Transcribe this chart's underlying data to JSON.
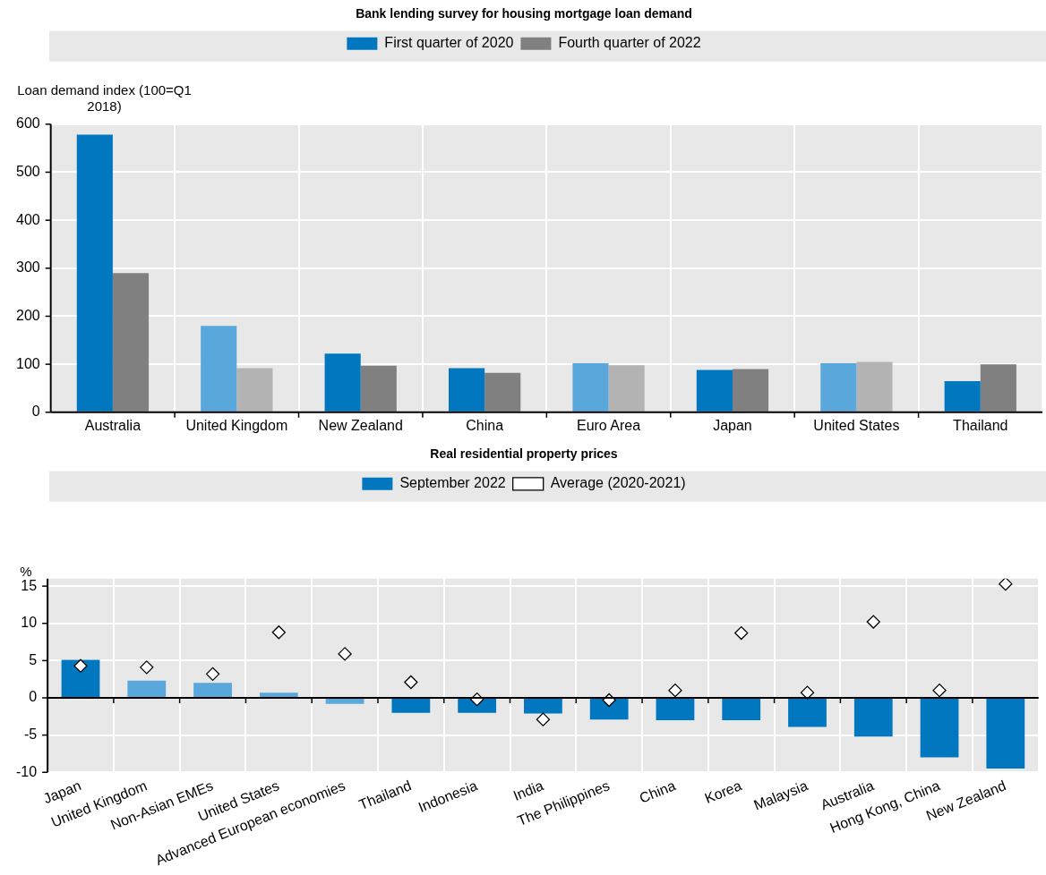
{
  "chart_data": [
    {
      "type": "bar",
      "title": "Bank lending survey for housing mortgage loan demand",
      "ylabel": "Loan demand index (100=Q1 2018)",
      "categories": [
        "Australia",
        "United Kingdom",
        "New Zealand",
        "China",
        "Euro Area",
        "Japan",
        "United States",
        "Thailand"
      ],
      "series": [
        {
          "name": "First quarter of 2020",
          "color": "#0077bf",
          "colors": [
            "#0077bf",
            "#59a7db",
            "#0077bf",
            "#0077bf",
            "#59a7db",
            "#0077bf",
            "#59a7db",
            "#0077bf"
          ],
          "values": [
            578,
            180,
            122,
            92,
            102,
            88,
            102,
            65
          ]
        },
        {
          "name": "Fourth quarter of 2022",
          "color": "#808080",
          "colors": [
            "#808080",
            "#b3b3b3",
            "#808080",
            "#808080",
            "#b3b3b3",
            "#808080",
            "#b3b3b3",
            "#808080"
          ],
          "values": [
            290,
            92,
            97,
            82,
            98,
            90,
            105,
            100
          ]
        }
      ],
      "ylim": [
        0,
        600
      ],
      "yticks": [
        0,
        100,
        200,
        300,
        400,
        500,
        600
      ],
      "grid": true,
      "legend": "top"
    },
    {
      "type": "bar",
      "title": "Real residential property prices",
      "ylabel": "%",
      "categories": [
        "Japan",
        "United Kingdom",
        "Non-Asian EMEs",
        "United States",
        "Advanced European economies",
        "Thailand",
        "Indonesia",
        "India",
        "The Philippines",
        "China",
        "Korea",
        "Malaysia",
        "Australia",
        "Hong Kong, China",
        "New Zealand"
      ],
      "series": [
        {
          "name": "September 2022",
          "type": "bar",
          "color": "#0077bf",
          "colors": [
            "#0077bf",
            "#59a7db",
            "#59a7db",
            "#59a7db",
            "#59a7db",
            "#0077bf",
            "#0077bf",
            "#0077bf",
            "#0077bf",
            "#0077bf",
            "#0077bf",
            "#0077bf",
            "#0077bf",
            "#0077bf",
            "#0077bf"
          ],
          "values": [
            5.1,
            2.3,
            2.0,
            0.7,
            -0.8,
            -2.0,
            -2.0,
            -2.1,
            -2.9,
            -3.0,
            -3.0,
            -3.9,
            -5.2,
            -8.0,
            -9.5
          ]
        },
        {
          "name": "Average (2020-2021)",
          "type": "scatter",
          "color": "#ffffff",
          "values": [
            4.3,
            4.1,
            3.2,
            8.8,
            5.9,
            2.1,
            -0.2,
            -2.9,
            -0.3,
            1.0,
            8.7,
            0.7,
            10.2,
            1.0,
            15.3
          ]
        }
      ],
      "marker": "diamond",
      "ylim": [
        -10,
        16
      ],
      "yticks": [
        -10,
        -5,
        0,
        5,
        10,
        15
      ],
      "grid": true,
      "legend": "top"
    }
  ]
}
